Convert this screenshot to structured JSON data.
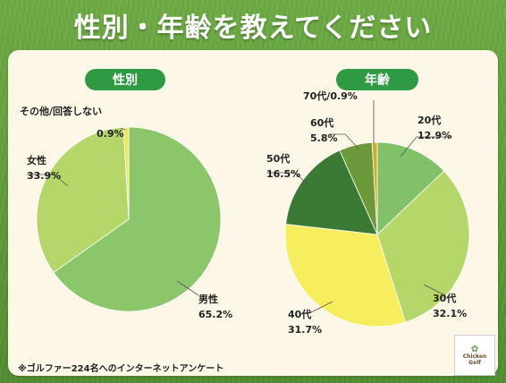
{
  "title": "性別・年齢を教えてください",
  "footnote": "※ゴルファー224名へのインターネットアンケート",
  "logo": {
    "line1": "Chicken",
    "line2": "Golf"
  },
  "colors": {
    "pill": "#2f9a44",
    "panel": "#fcf7e6",
    "leader": "#555555"
  },
  "chart_data": [
    {
      "type": "pie",
      "title": "性別",
      "slices": [
        {
          "label": "男性",
          "value": 65.2,
          "display": "65.2%",
          "color": "#8cc66b"
        },
        {
          "label": "女性",
          "value": 33.9,
          "display": "33.9%",
          "color": "#b5d76a"
        },
        {
          "label": "その他/回答しない",
          "value": 0.9,
          "display": "0.9%",
          "color": "#f1e65a"
        }
      ]
    },
    {
      "type": "pie",
      "title": "年齢",
      "slices": [
        {
          "label": "20代",
          "value": 12.9,
          "display": "12.9%",
          "color": "#83c168"
        },
        {
          "label": "30代",
          "value": 32.1,
          "display": "32.1%",
          "color": "#b5d76a"
        },
        {
          "label": "40代",
          "value": 31.7,
          "display": "31.7%",
          "color": "#f6ee5c"
        },
        {
          "label": "50代",
          "value": 16.5,
          "display": "16.5%",
          "color": "#3b7a35"
        },
        {
          "label": "60代",
          "value": 5.8,
          "display": "5.8%",
          "color": "#6c9a3a"
        },
        {
          "label": "70代",
          "value": 0.9,
          "display": "0.9%",
          "color": "#d4ad2a"
        }
      ]
    }
  ]
}
